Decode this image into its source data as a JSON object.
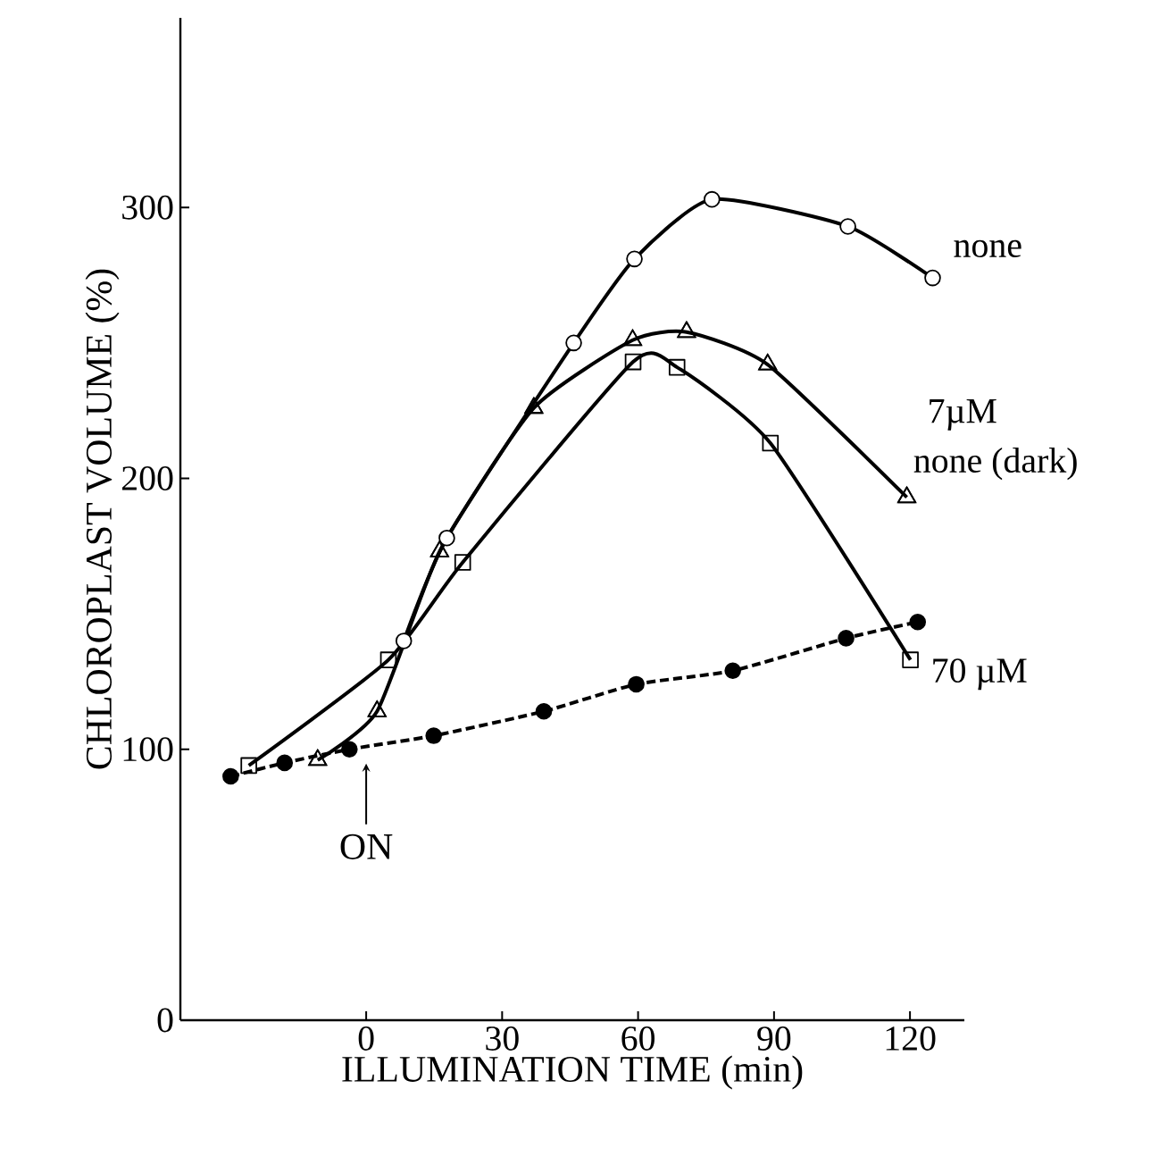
{
  "chart_data": {
    "type": "line",
    "xlabel": "ILLUMINATION TIME (min)",
    "ylabel": "CHLOROPLAST VOLUME (%)",
    "xlim": [
      -41,
      132
    ],
    "ylim": [
      0,
      370
    ],
    "xticks": [
      0,
      30,
      60,
      90,
      120
    ],
    "yticks": [
      0,
      100,
      200,
      300
    ],
    "grid": false,
    "annotations": [
      {
        "text": "ON",
        "x": 0,
        "y": 100
      }
    ],
    "series": [
      {
        "name": "none",
        "color": "#000000",
        "marker": "circle",
        "line_style": "solid",
        "x": [
          8.3,
          17.8,
          45.8,
          59.2,
          76.3,
          106.3,
          125
        ],
        "values": [
          140,
          178,
          250,
          281,
          303,
          293,
          274
        ]
      },
      {
        "name": "7µM",
        "color": "#000000",
        "marker": "triangle",
        "line_style": "solid",
        "x": [
          -10.7,
          2.4,
          16.2,
          37,
          58.8,
          70.7,
          88.6,
          119.3
        ],
        "values": [
          96,
          114,
          173,
          226,
          251,
          254,
          242,
          193
        ]
      },
      {
        "name": "none (dark)",
        "color": "#000000",
        "marker": "circle*",
        "line_style": "dashed",
        "x": [
          -29.9,
          -18,
          -3.7,
          14.9,
          39.2,
          59.6,
          80.9,
          105.9,
          121.7
        ],
        "values": [
          90,
          95,
          100,
          105,
          114,
          124,
          129,
          141,
          147
        ]
      },
      {
        "name": "70 µM",
        "color": "#000000",
        "marker": "square",
        "line_style": "solid",
        "x": [
          -25.9,
          4.9,
          21.3,
          58.9,
          68.6,
          89.2,
          120.1
        ],
        "values": [
          94,
          133,
          169,
          243,
          241,
          213,
          133
        ]
      }
    ]
  }
}
